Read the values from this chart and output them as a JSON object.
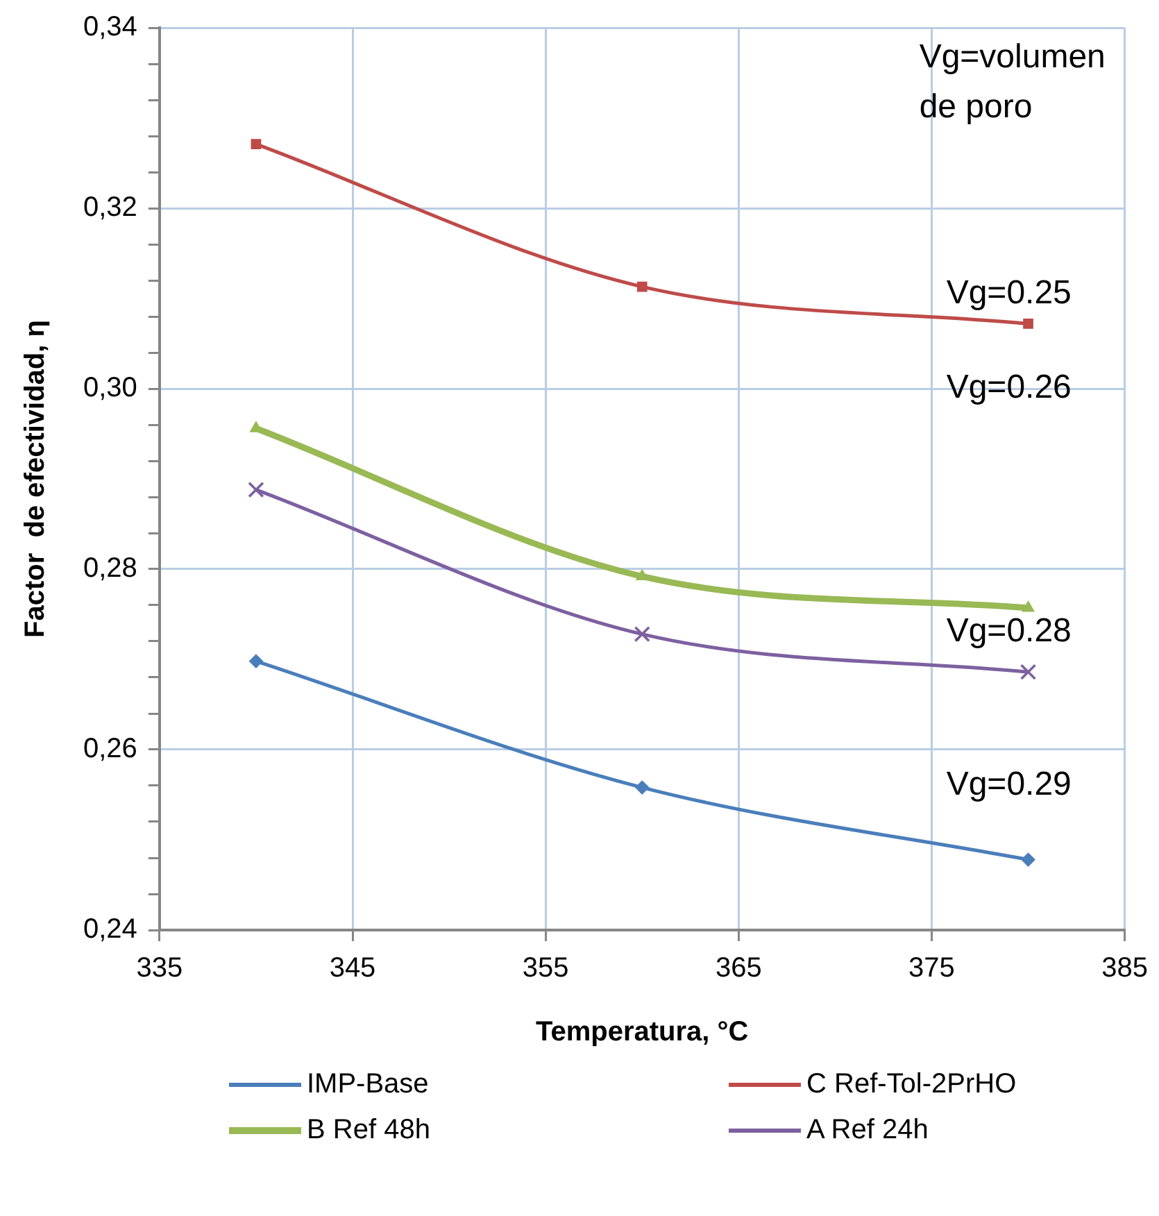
{
  "chart_data": {
    "type": "line",
    "xlabel": "Temperatura, °C",
    "ylabel": "Factor  de efectividad, η",
    "x": [
      340,
      360,
      380
    ],
    "series": [
      {
        "name": "IMP-Base",
        "color": "#4a7ebb",
        "marker": "diamond",
        "values": [
          0.2698,
          0.2558,
          0.2478
        ]
      },
      {
        "name": "C Ref-Tol-2PrHO",
        "color": "#be4b48",
        "marker": "square",
        "values": [
          0.3271,
          0.3113,
          0.3072
        ]
      },
      {
        "name": "B Ref 48h",
        "color": "#98b954",
        "marker": "triangle",
        "values": [
          0.2956,
          0.2792,
          0.2757
        ]
      },
      {
        "name": "A Ref 24h",
        "color": "#7d60a0",
        "marker": "cross",
        "values": [
          0.2888,
          0.2728,
          0.2686
        ]
      }
    ],
    "xlim": [
      335,
      385
    ],
    "xticks": [
      335,
      345,
      355,
      365,
      375,
      385
    ],
    "ylim": [
      0.24,
      0.34
    ],
    "yticks": [
      {
        "value": 0.24,
        "label": "0,24"
      },
      {
        "value": 0.244,
        "label": null
      },
      {
        "value": 0.248,
        "label": null
      },
      {
        "value": 0.252,
        "label": null
      },
      {
        "value": 0.256,
        "label": null
      },
      {
        "value": 0.26,
        "label": "0,26"
      },
      {
        "value": 0.264,
        "label": null
      },
      {
        "value": 0.268,
        "label": null
      },
      {
        "value": 0.272,
        "label": null
      },
      {
        "value": 0.276,
        "label": null
      },
      {
        "value": 0.28,
        "label": "0,28"
      },
      {
        "value": 0.284,
        "label": null
      },
      {
        "value": 0.288,
        "label": null
      },
      {
        "value": 0.292,
        "label": null
      },
      {
        "value": 0.296,
        "label": null
      },
      {
        "value": 0.3,
        "label": "0,30"
      },
      {
        "value": 0.304,
        "label": null
      },
      {
        "value": 0.308,
        "label": null
      },
      {
        "value": 0.312,
        "label": null
      },
      {
        "value": 0.316,
        "label": null
      },
      {
        "value": 0.32,
        "label": "0,32"
      },
      {
        "value": 0.324,
        "label": null
      },
      {
        "value": 0.328,
        "label": null
      },
      {
        "value": 0.332,
        "label": null
      },
      {
        "value": 0.336,
        "label": null
      },
      {
        "value": 0.34,
        "label": "0,34"
      }
    ],
    "grid": true,
    "legend": "bottom",
    "annotations": [
      "Vg=volumen de poro",
      "Vg=0.25",
      "Vg=0.26",
      "Vg=0.28",
      "Vg=0.29"
    ]
  }
}
